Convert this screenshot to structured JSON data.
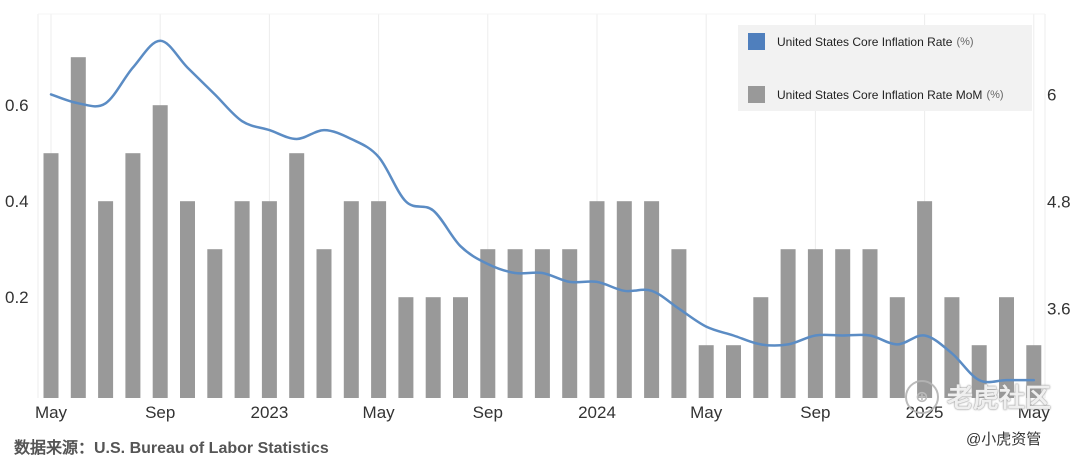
{
  "chart_data": {
    "type": "bar+line",
    "x": [
      "2022-05",
      "2022-06",
      "2022-07",
      "2022-08",
      "2022-09",
      "2022-10",
      "2022-11",
      "2022-12",
      "2023-01",
      "2023-02",
      "2023-03",
      "2023-04",
      "2023-05",
      "2023-06",
      "2023-07",
      "2023-08",
      "2023-09",
      "2023-10",
      "2023-11",
      "2023-12",
      "2024-01",
      "2024-02",
      "2024-03",
      "2024-04",
      "2024-05",
      "2024-06",
      "2024-07",
      "2024-08",
      "2024-09",
      "2024-10",
      "2024-11",
      "2024-12",
      "2025-01",
      "2025-02",
      "2025-03",
      "2025-04",
      "2025-05"
    ],
    "x_tick_labels": [
      "May",
      "Sep",
      "2023",
      "May",
      "Sep",
      "2024",
      "May",
      "Sep",
      "2025",
      "May"
    ],
    "series": [
      {
        "name": "United States Core Inflation Rate",
        "unit": "(%)",
        "type": "line",
        "axis": "right",
        "color": "#5b8cc4",
        "values": [
          6.0,
          5.9,
          5.9,
          6.3,
          6.6,
          6.3,
          6.0,
          5.7,
          5.6,
          5.5,
          5.6,
          5.5,
          5.3,
          4.8,
          4.7,
          4.3,
          4.1,
          4.0,
          4.0,
          3.9,
          3.9,
          3.8,
          3.8,
          3.6,
          3.4,
          3.3,
          3.2,
          3.2,
          3.3,
          3.3,
          3.3,
          3.2,
          3.3,
          3.1,
          2.8,
          2.8,
          2.8
        ]
      },
      {
        "name": "United States Core Inflation Rate MoM",
        "unit": "(%)",
        "type": "bar",
        "axis": "left",
        "color": "#999999",
        "values": [
          0.5,
          0.7,
          0.4,
          0.5,
          0.6,
          0.4,
          0.3,
          0.4,
          0.4,
          0.5,
          0.3,
          0.4,
          0.4,
          0.2,
          0.2,
          0.2,
          0.3,
          0.3,
          0.3,
          0.3,
          0.4,
          0.4,
          0.4,
          0.3,
          0.1,
          0.1,
          0.2,
          0.3,
          0.3,
          0.3,
          0.3,
          0.2,
          0.4,
          0.2,
          0.1,
          0.2,
          0.1
        ]
      }
    ],
    "y_left": {
      "ticks": [
        "0.2",
        "0.4",
        "0.6"
      ],
      "range": [
        -0.01,
        0.79
      ]
    },
    "y_right": {
      "ticks": [
        "3.6",
        "4.8",
        "6"
      ],
      "range": [
        2.6,
        6.9
      ]
    },
    "grid": "vertical",
    "legend": "top-right"
  },
  "source_text": "数据来源：U.S. Bureau of Labor Statistics",
  "watermark": {
    "logo_glyph": "⊕",
    "text": "老虎社区"
  },
  "handle_text": "@小虎资管"
}
